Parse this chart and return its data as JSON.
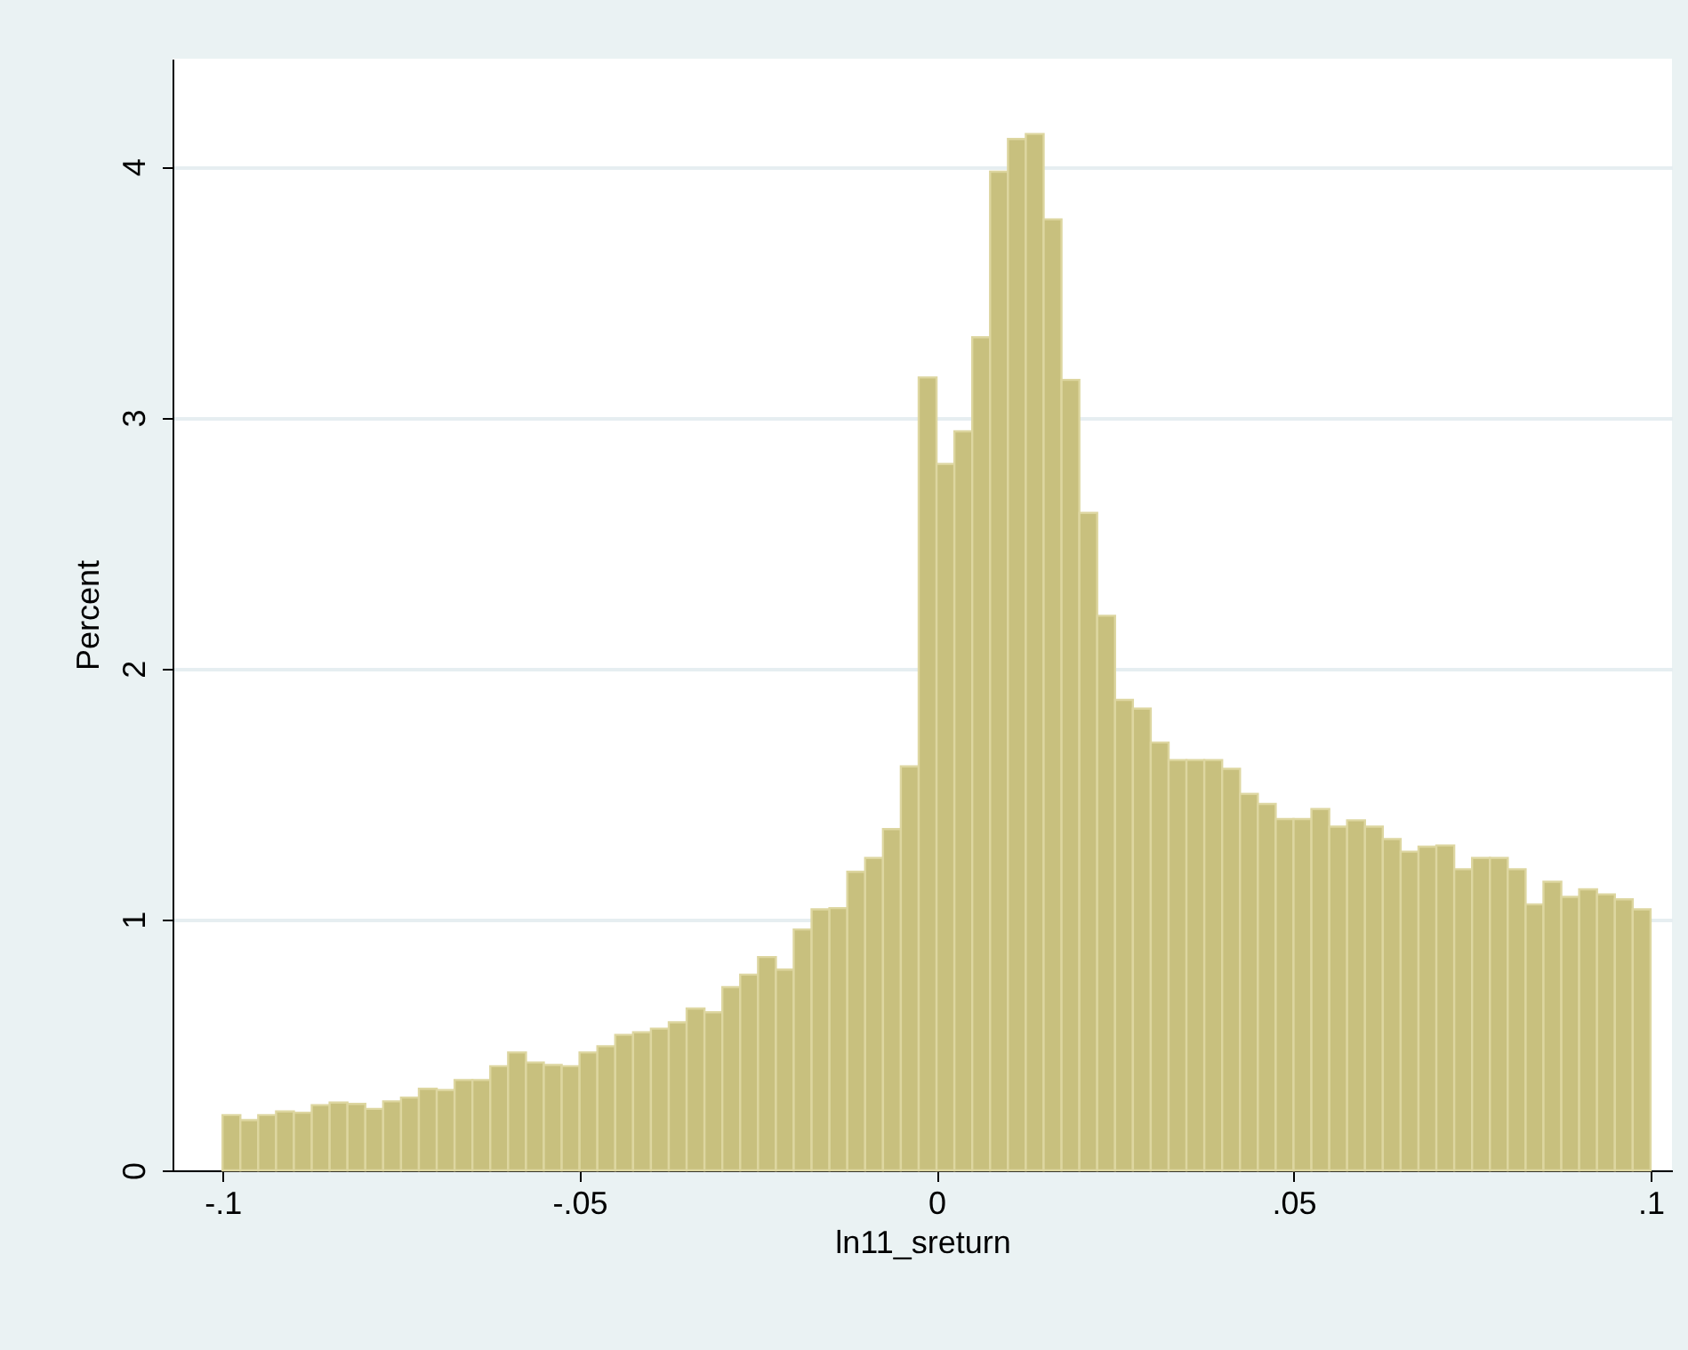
{
  "chart_data": {
    "type": "histogram",
    "xlabel": "ln11_sreturn",
    "ylabel": "Percent",
    "bins": [
      -0.1,
      -0.0975,
      -0.095,
      -0.0925,
      -0.09,
      -0.0875,
      -0.085,
      -0.0825,
      -0.08,
      -0.0775,
      -0.075,
      -0.0725,
      -0.07,
      -0.0675,
      -0.065,
      -0.0625,
      -0.06,
      -0.0575,
      -0.055,
      -0.0525,
      -0.05,
      -0.0475,
      -0.045,
      -0.0425,
      -0.04,
      -0.0375,
      -0.035,
      -0.0325,
      -0.03,
      -0.0275,
      -0.025,
      -0.0225,
      -0.02,
      -0.0175,
      -0.015,
      -0.0125,
      -0.01,
      -0.0075,
      -0.005,
      -0.0025,
      0,
      0.0025,
      0.005,
      0.0075,
      0.01,
      0.0125,
      0.015,
      0.0175,
      0.02,
      0.0225,
      0.025,
      0.0275,
      0.03,
      0.0325,
      0.035,
      0.0375,
      0.04,
      0.0425,
      0.045,
      0.0475,
      0.05,
      0.0525,
      0.055,
      0.0575,
      0.06,
      0.0625,
      0.065,
      0.0675,
      0.07,
      0.0725,
      0.075,
      0.0775,
      0.08,
      0.0825,
      0.085,
      0.0875,
      0.09,
      0.0925,
      0.095,
      0.0975,
      0.1
    ],
    "values": [
      0.22,
      0.2,
      0.22,
      0.235,
      0.23,
      0.26,
      0.27,
      0.265,
      0.245,
      0.275,
      0.29,
      0.325,
      0.32,
      0.36,
      0.36,
      0.415,
      0.47,
      0.43,
      0.42,
      0.415,
      0.47,
      0.495,
      0.54,
      0.55,
      0.565,
      0.59,
      0.645,
      0.63,
      0.73,
      0.78,
      0.85,
      0.8,
      0.96,
      1.04,
      1.045,
      1.19,
      1.245,
      1.36,
      1.61,
      3.16,
      2.815,
      2.945,
      3.32,
      3.98,
      4.11,
      4.13,
      3.79,
      3.15,
      2.62,
      2.21,
      1.875,
      1.84,
      1.705,
      1.635,
      1.635,
      1.635,
      1.6,
      1.5,
      1.46,
      1.4,
      1.4,
      1.44,
      1.37,
      1.395,
      1.37,
      1.32,
      1.27,
      1.29,
      1.295,
      1.2,
      1.245,
      1.245,
      1.2,
      1.06,
      1.15,
      1.09,
      1.12,
      1.1,
      1.08,
      1.04
    ],
    "color": "#c8c07e",
    "xlim": [
      -0.107,
      0.103
    ],
    "xticks": [
      {
        "value": -0.1,
        "label": "-.1"
      },
      {
        "value": -0.05,
        "label": "-.05"
      },
      0,
      {
        "value": 0.05,
        "label": ".05"
      },
      {
        "value": 0.1,
        "label": ".1"
      }
    ],
    "ylim": [
      0,
      4.43
    ],
    "yticks": [
      0,
      1,
      2,
      3,
      4
    ],
    "grid": "y"
  }
}
